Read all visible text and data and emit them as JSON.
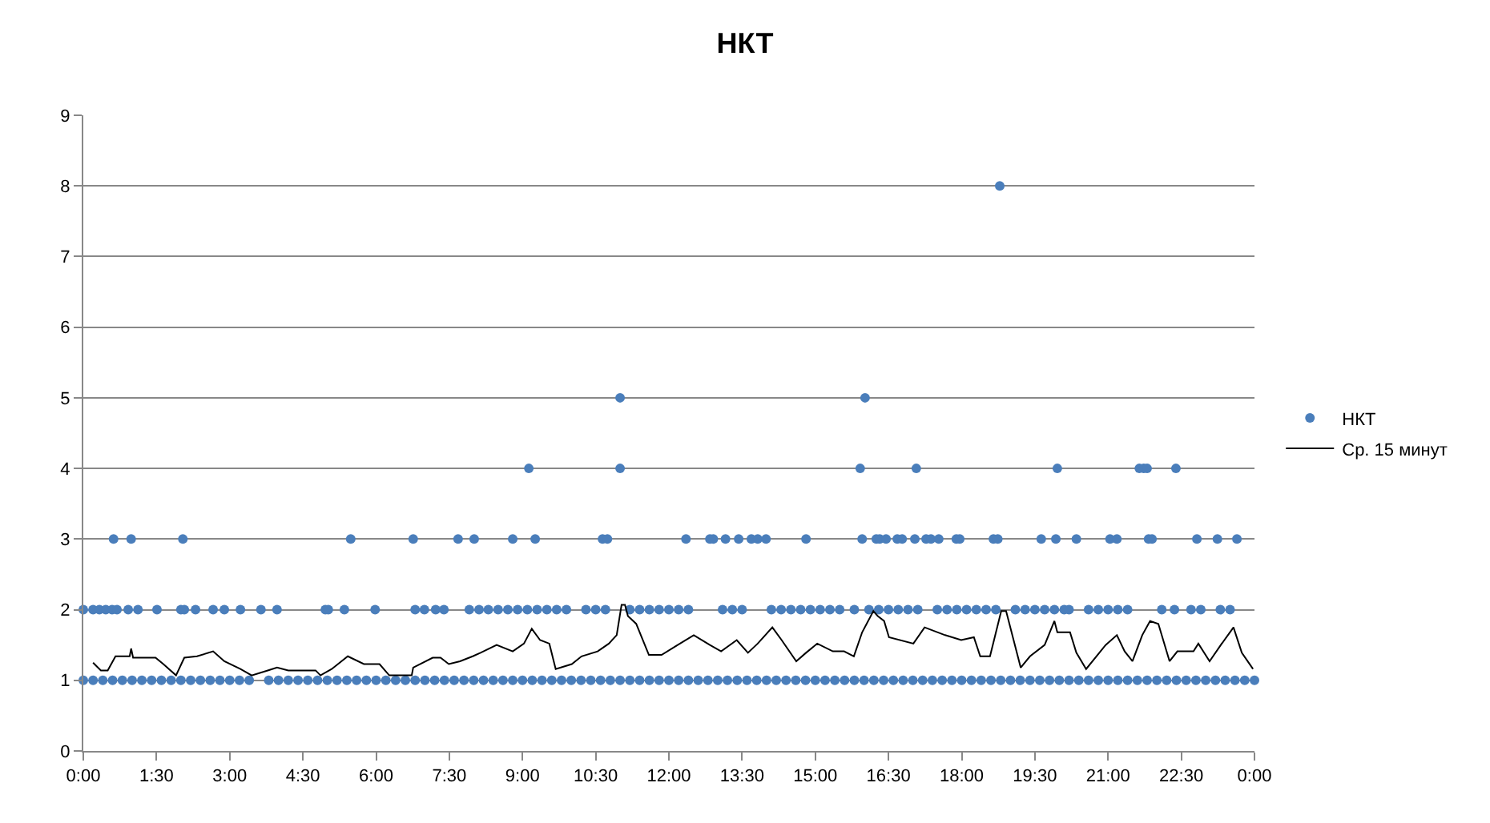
{
  "chart_data": {
    "type": "scatter",
    "title": "НКТ",
    "xlim": [
      0,
      24
    ],
    "xticks": [
      {
        "value": 0,
        "label": "0:00"
      },
      {
        "value": 1.5,
        "label": "1:30"
      },
      {
        "value": 3,
        "label": "3:00"
      },
      {
        "value": 4.5,
        "label": "4:30"
      },
      {
        "value": 6,
        "label": "6:00"
      },
      {
        "value": 7.5,
        "label": "7:30"
      },
      {
        "value": 9,
        "label": "9:00"
      },
      {
        "value": 10.5,
        "label": "10:30"
      },
      {
        "value": 12,
        "label": "12:00"
      },
      {
        "value": 13.5,
        "label": "13:30"
      },
      {
        "value": 15,
        "label": "15:00"
      },
      {
        "value": 16.5,
        "label": "16:30"
      },
      {
        "value": 18,
        "label": "18:00"
      },
      {
        "value": 19.5,
        "label": "19:30"
      },
      {
        "value": 21,
        "label": "21:00"
      },
      {
        "value": 22.5,
        "label": "22:30"
      },
      {
        "value": 24,
        "label": "0:00"
      }
    ],
    "ylim": [
      0,
      9
    ],
    "yticks": [
      0,
      1,
      2,
      3,
      4,
      5,
      6,
      7,
      8,
      9
    ],
    "grid": "y",
    "legend": "right",
    "series": [
      {
        "name": "НКТ",
        "type": "scatter",
        "color": "#4a7ebb",
        "marker": "circle",
        "x": [
          0,
          0.2,
          0.4,
          0.6,
          0.8,
          1,
          1.2,
          1.4,
          1.6,
          1.8,
          2,
          2.2,
          2.4,
          2.6,
          2.8,
          3,
          3.2,
          3.4,
          3.8,
          4,
          4.2,
          4.4,
          4.6,
          4.8,
          5,
          5.2,
          5.4,
          5.6,
          5.8,
          6,
          6.2,
          6.4,
          6.6,
          6.8,
          7,
          7.2,
          7.4,
          7.6,
          7.8,
          8,
          8.2,
          8.4,
          8.6,
          8.8,
          9,
          9.2,
          9.4,
          9.6,
          9.8,
          10,
          10.2,
          10.4,
          10.6,
          10.8,
          11,
          11.2,
          11.4,
          11.6,
          11.8,
          12,
          12.2,
          12.4,
          12.6,
          12.8,
          13,
          13.2,
          13.4,
          13.6,
          13.8,
          14,
          14.2,
          14.4,
          14.6,
          14.8,
          15,
          15.2,
          15.4,
          15.6,
          15.8,
          16,
          16.2,
          16.4,
          16.6,
          16.8,
          17,
          17.2,
          17.4,
          17.6,
          17.8,
          18,
          18.2,
          18.4,
          18.6,
          18.8,
          19,
          19.2,
          19.4,
          19.6,
          19.8,
          20,
          20.2,
          20.4,
          20.6,
          20.8,
          21,
          21.2,
          21.4,
          21.6,
          21.8,
          22,
          22.2,
          22.4,
          22.6,
          22.8,
          23,
          23.2,
          23.4,
          23.6,
          23.8,
          24,
          0,
          0.2,
          0.33,
          0.46,
          0.59,
          0.69,
          0.92,
          1.12,
          1.51,
          2.0,
          2.07,
          2.3,
          2.66,
          2.89,
          3.22,
          3.64,
          3.97,
          4.96,
          5.02,
          5.35,
          5.98,
          6.8,
          6.99,
          7.22,
          7.39,
          7.91,
          8.11,
          8.3,
          8.5,
          8.7,
          8.9,
          9.1,
          9.3,
          9.5,
          9.7,
          9.9,
          10.3,
          10.5,
          10.7,
          11.2,
          11.4,
          11.6,
          11.8,
          12.0,
          12.2,
          12.4,
          13.1,
          13.3,
          13.5,
          14.1,
          14.3,
          14.5,
          14.7,
          14.9,
          15.1,
          15.3,
          15.5,
          15.8,
          16.1,
          16.3,
          16.5,
          16.7,
          16.9,
          17.1,
          17.5,
          17.7,
          17.9,
          18.1,
          18.3,
          18.5,
          18.7,
          19.1,
          19.3,
          19.5,
          19.7,
          19.9,
          20.1,
          20.2,
          20.6,
          20.8,
          21.0,
          21.2,
          21.4,
          22.1,
          22.36,
          22.7,
          22.9,
          23.3,
          23.5,
          0.62,
          0.98,
          2.04,
          5.48,
          6.76,
          7.68,
          8.01,
          8.8,
          9.26,
          10.64,
          10.74,
          12.35,
          12.84,
          12.91,
          13.16,
          13.43,
          13.69,
          13.82,
          13.99,
          14.81,
          15.96,
          16.25,
          16.32,
          16.45,
          16.68,
          16.78,
          17.04,
          17.27,
          17.37,
          17.53,
          17.89,
          17.96,
          18.65,
          18.74,
          19.63,
          19.93,
          20.35,
          21.04,
          21.18,
          21.83,
          21.9,
          22.82,
          23.24,
          23.64,
          9.13,
          11.0,
          15.92,
          17.07,
          19.96,
          21.64,
          21.73,
          21.8,
          22.39,
          11.0,
          16.02,
          18.78
        ],
        "values": [
          1,
          1,
          1,
          1,
          1,
          1,
          1,
          1,
          1,
          1,
          1,
          1,
          1,
          1,
          1,
          1,
          1,
          1,
          1,
          1,
          1,
          1,
          1,
          1,
          1,
          1,
          1,
          1,
          1,
          1,
          1,
          1,
          1,
          1,
          1,
          1,
          1,
          1,
          1,
          1,
          1,
          1,
          1,
          1,
          1,
          1,
          1,
          1,
          1,
          1,
          1,
          1,
          1,
          1,
          1,
          1,
          1,
          1,
          1,
          1,
          1,
          1,
          1,
          1,
          1,
          1,
          1,
          1,
          1,
          1,
          1,
          1,
          1,
          1,
          1,
          1,
          1,
          1,
          1,
          1,
          1,
          1,
          1,
          1,
          1,
          1,
          1,
          1,
          1,
          1,
          1,
          1,
          1,
          1,
          1,
          1,
          1,
          1,
          1,
          1,
          1,
          1,
          1,
          1,
          1,
          1,
          1,
          1,
          1,
          1,
          1,
          1,
          1,
          1,
          1,
          1,
          1,
          1,
          1,
          1,
          2,
          2,
          2,
          2,
          2,
          2,
          2,
          2,
          2,
          2,
          2,
          2,
          2,
          2,
          2,
          2,
          2,
          2,
          2,
          2,
          2,
          2,
          2,
          2,
          2,
          2,
          2,
          2,
          2,
          2,
          2,
          2,
          2,
          2,
          2,
          2,
          2,
          2,
          2,
          2,
          2,
          2,
          2,
          2,
          2,
          2,
          2,
          2,
          2,
          2,
          2,
          2,
          2,
          2,
          2,
          2,
          2,
          2,
          2,
          2,
          2,
          2,
          2,
          2,
          2,
          2,
          2,
          2,
          2,
          2,
          2,
          2,
          2,
          2,
          2,
          2,
          2,
          2,
          2,
          2,
          2,
          2,
          2,
          2,
          2,
          2,
          2,
          2,
          2,
          3,
          3,
          3,
          3,
          3,
          3,
          3,
          3,
          3,
          3,
          3,
          3,
          3,
          3,
          3,
          3,
          3,
          3,
          3,
          3,
          3,
          3,
          3,
          3,
          3,
          3,
          3,
          3,
          3,
          3,
          3,
          3,
          3,
          3,
          3,
          3,
          3,
          3,
          3,
          3,
          3,
          3,
          3,
          3,
          4,
          4,
          4,
          4,
          4,
          4,
          4,
          4,
          4,
          5,
          5,
          8
        ]
      },
      {
        "name": "Ср. 15 минут",
        "type": "line",
        "color": "#000000",
        "marker": "none",
        "line_style": "solid",
        "x": [
          0.2,
          0.36,
          0.5,
          0.66,
          0.95,
          0.98,
          1.02,
          1.48,
          1.64,
          1.9,
          2.07,
          2.33,
          2.66,
          2.89,
          3.22,
          3.45,
          3.78,
          3.97,
          4.2,
          4.76,
          4.86,
          5.09,
          5.42,
          5.75,
          6.07,
          6.27,
          6.73,
          6.76,
          7.16,
          7.32,
          7.49,
          7.72,
          7.98,
          8.14,
          8.47,
          8.8,
          9.03,
          9.19,
          9.36,
          9.55,
          9.68,
          10.01,
          10.21,
          10.54,
          10.77,
          10.93,
          11.03,
          11.1,
          11.16,
          11.33,
          11.59,
          11.85,
          12.18,
          12.51,
          12.84,
          13.07,
          13.39,
          13.62,
          13.82,
          14.12,
          14.31,
          14.61,
          14.81,
          15.04,
          15.36,
          15.59,
          15.79,
          15.96,
          16.19,
          16.28,
          16.41,
          16.51,
          17.01,
          17.24,
          17.66,
          17.99,
          18.25,
          18.38,
          18.58,
          18.81,
          18.91,
          19.21,
          19.4,
          19.7,
          19.9,
          19.96,
          20.22,
          20.35,
          20.55,
          20.95,
          21.18,
          21.34,
          21.5,
          21.7,
          21.86,
          22.03,
          22.26,
          22.42,
          22.75,
          22.85,
          23.08,
          23.31,
          23.57,
          23.74,
          23.97
        ],
        "values": [
          1.25,
          1.14,
          1.14,
          1.34,
          1.34,
          1.45,
          1.32,
          1.32,
          1.23,
          1.07,
          1.32,
          1.34,
          1.41,
          1.27,
          1.16,
          1.07,
          1.14,
          1.18,
          1.14,
          1.14,
          1.07,
          1.16,
          1.34,
          1.23,
          1.23,
          1.07,
          1.07,
          1.18,
          1.32,
          1.32,
          1.23,
          1.27,
          1.34,
          1.39,
          1.5,
          1.41,
          1.52,
          1.73,
          1.57,
          1.52,
          1.16,
          1.23,
          1.34,
          1.41,
          1.52,
          1.64,
          2.07,
          2.07,
          1.91,
          1.8,
          1.36,
          1.36,
          1.5,
          1.64,
          1.5,
          1.41,
          1.57,
          1.39,
          1.52,
          1.75,
          1.57,
          1.27,
          1.39,
          1.52,
          1.41,
          1.41,
          1.34,
          1.68,
          1.98,
          1.91,
          1.84,
          1.61,
          1.52,
          1.75,
          1.64,
          1.57,
          1.61,
          1.34,
          1.34,
          1.98,
          1.98,
          1.18,
          1.34,
          1.5,
          1.84,
          1.68,
          1.68,
          1.39,
          1.16,
          1.5,
          1.64,
          1.41,
          1.27,
          1.64,
          1.84,
          1.8,
          1.27,
          1.41,
          1.41,
          1.52,
          1.27,
          1.5,
          1.75,
          1.39,
          1.16
        ]
      }
    ]
  }
}
